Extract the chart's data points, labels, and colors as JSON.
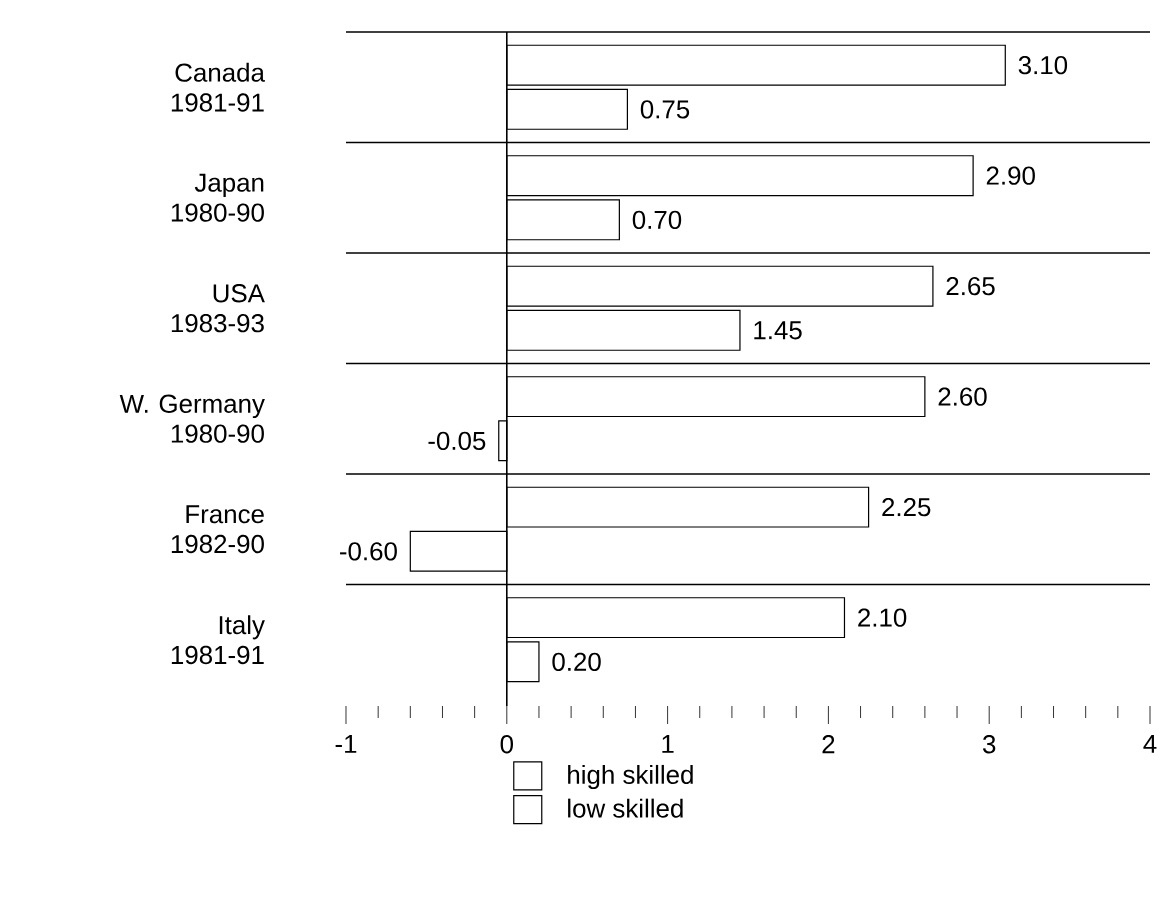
{
  "chart_data": {
    "type": "bar",
    "orientation": "horizontal",
    "categories": [
      "Canada 1981-91",
      "Japan 1980-90",
      "USA 1983-93",
      "W. Germany 1980-90",
      "France 1982-90",
      "Italy 1981-91"
    ],
    "series": [
      {
        "name": "high skilled",
        "color": "#ffffff",
        "values": [
          3.1,
          2.9,
          2.65,
          2.6,
          2.25,
          2.1
        ],
        "value_labels": [
          "3.10",
          "2.90",
          "2.65",
          "2.60",
          "2.25",
          "2.10"
        ]
      },
      {
        "name": "low skilled",
        "color": "#ffffff",
        "values": [
          0.75,
          0.7,
          1.45,
          -0.05,
          -0.6,
          0.2
        ],
        "value_labels": [
          "0.75",
          "0.70",
          "1.45",
          "-0.05",
          "-0.60",
          "0.20"
        ]
      }
    ],
    "xlim": [
      -1,
      4
    ],
    "xticks": [
      -1,
      0,
      1,
      2,
      3,
      4
    ],
    "legend": "bottom"
  }
}
